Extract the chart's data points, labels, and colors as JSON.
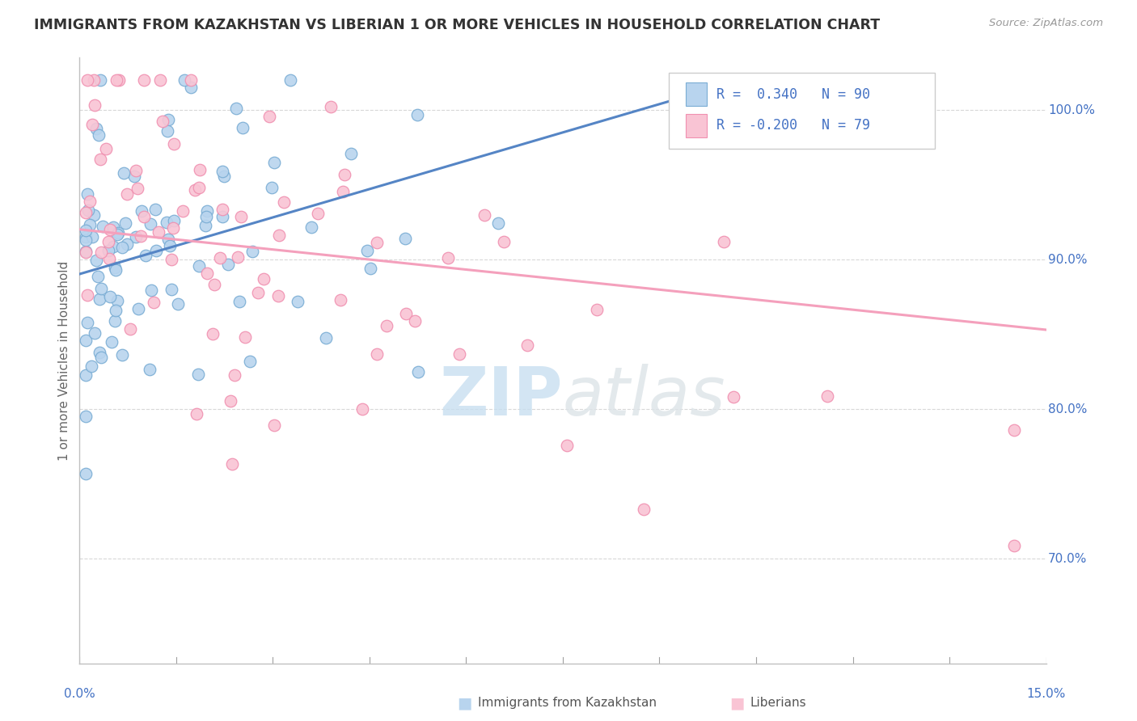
{
  "title": "IMMIGRANTS FROM KAZAKHSTAN VS LIBERIAN 1 OR MORE VEHICLES IN HOUSEHOLD CORRELATION CHART",
  "source": "Source: ZipAtlas.com",
  "ylabel": "1 or more Vehicles in Household",
  "y_ticks": [
    0.7,
    0.8,
    0.9,
    1.0
  ],
  "y_tick_labels": [
    "70.0%",
    "80.0%",
    "90.0%",
    "100.0%"
  ],
  "x_left_label": "0.0%",
  "x_right_label": "15.0%",
  "x_min": 0.0,
  "x_max": 0.15,
  "y_min": 0.63,
  "y_max": 1.035,
  "legend_blue_r": " 0.340",
  "legend_blue_n": "90",
  "legend_pink_r": "-0.200",
  "legend_pink_n": "79",
  "blue_scatter_color_face": "#b8d4ee",
  "blue_scatter_color_edge": "#7aadd4",
  "pink_scatter_color_face": "#f9c4d4",
  "pink_scatter_color_edge": "#f090b0",
  "blue_line_color": "#5585c5",
  "pink_line_color": "#f4a0bc",
  "axis_color": "#c0c0c0",
  "grid_color": "#d8d8d8",
  "label_color": "#4472c4",
  "title_color": "#333333",
  "bottom_legend_blue": "Immigrants from Kazakhstan",
  "bottom_legend_pink": "Liberians"
}
